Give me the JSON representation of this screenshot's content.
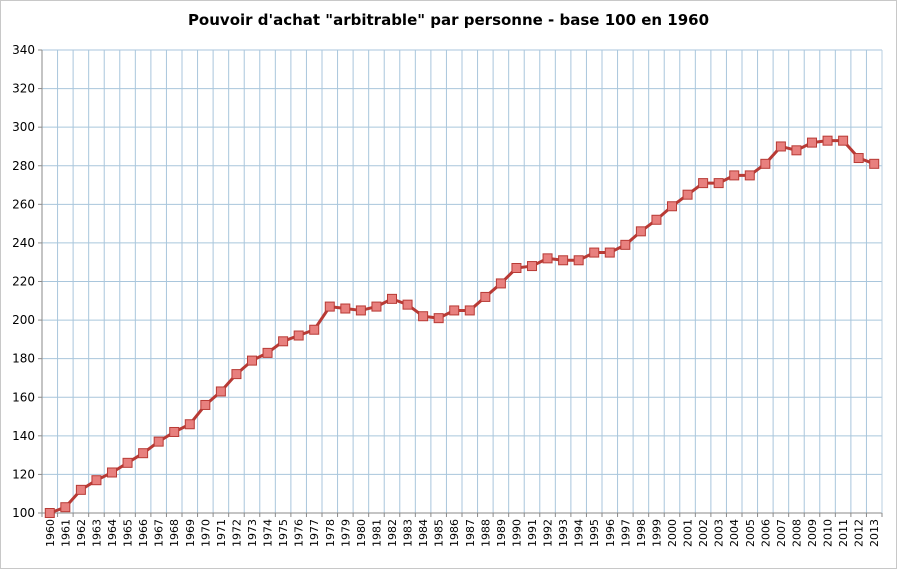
{
  "chart_data": {
    "type": "line",
    "title": "Pouvoir d'achat \"arbitrable\" par personne - base 100 en 1960",
    "xlabel": "",
    "ylabel": "",
    "ylim": [
      100,
      340
    ],
    "yticks": [
      100,
      120,
      140,
      160,
      180,
      200,
      220,
      240,
      260,
      280,
      300,
      320,
      340
    ],
    "grid": true,
    "legend": "none",
    "categories": [
      "1960",
      "1961",
      "1962",
      "1963",
      "1964",
      "1965",
      "1966",
      "1967",
      "1968",
      "1969",
      "1970",
      "1971",
      "1972",
      "1973",
      "1974",
      "1975",
      "1976",
      "1977",
      "1978",
      "1979",
      "1980",
      "1981",
      "1982",
      "1983",
      "1984",
      "1985",
      "1986",
      "1987",
      "1988",
      "1989",
      "1990",
      "1991",
      "1992",
      "1993",
      "1994",
      "1995",
      "1996",
      "1997",
      "1998",
      "1999",
      "2000",
      "2001",
      "2002",
      "2003",
      "2004",
      "2005",
      "2006",
      "2007",
      "2008",
      "2009",
      "2010",
      "2011",
      "2012",
      "2013"
    ],
    "series": [
      {
        "values": [
          100,
          103,
          112,
          117,
          121,
          126,
          131,
          137,
          142,
          146,
          156,
          163,
          172,
          179,
          183,
          189,
          192,
          195,
          207,
          206,
          205,
          207,
          211,
          208,
          202,
          201,
          205,
          205,
          212,
          219,
          227,
          228,
          232,
          231,
          231,
          235,
          235,
          239,
          246,
          252,
          259,
          265,
          271,
          271,
          275,
          275,
          281,
          290,
          288,
          292,
          293,
          293,
          284,
          281
        ],
        "color": "#b83a35",
        "marker_color": "#e8807e"
      }
    ]
  }
}
